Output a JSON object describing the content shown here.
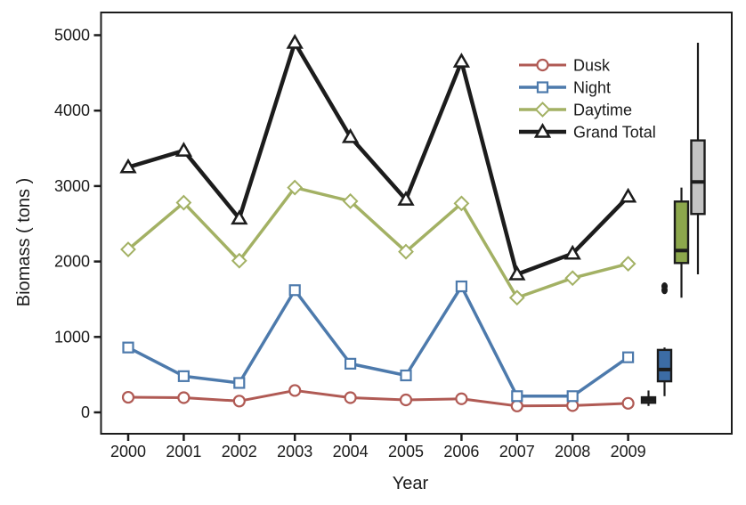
{
  "chart_data": {
    "type": "line",
    "title": "",
    "xlabel": "Year",
    "ylabel": "Biomass ( tons )",
    "x": [
      2000,
      2001,
      2002,
      2003,
      2004,
      2005,
      2006,
      2007,
      2008,
      2009
    ],
    "yticks": [
      0,
      1000,
      2000,
      3000,
      4000,
      5000
    ],
    "ylim": [
      0,
      5000
    ],
    "grid": false,
    "legend_position": "inside-top-right",
    "axis_color": "#1c1c1c",
    "series": [
      {
        "name": "Dusk",
        "color": "#B05A54",
        "marker": "circle",
        "values": [
          200,
          195,
          150,
          290,
          195,
          165,
          180,
          85,
          90,
          120
        ]
      },
      {
        "name": "Night",
        "color": "#4D7AAC",
        "marker": "square",
        "values": [
          860,
          480,
          390,
          1620,
          645,
          490,
          1670,
          215,
          215,
          730
        ]
      },
      {
        "name": "Daytime",
        "color": "#A3B164",
        "marker": "diamond",
        "values": [
          2160,
          2780,
          2010,
          2980,
          2800,
          2130,
          2770,
          1520,
          1780,
          1970
        ]
      },
      {
        "name": "Grand Total",
        "color": "#1C1C1C",
        "marker": "triangle",
        "values": [
          3250,
          3470,
          2570,
          4900,
          3650,
          2820,
          4650,
          1830,
          2105,
          2860
        ]
      }
    ],
    "boxplots": [
      {
        "name": "Dusk",
        "fill": "#2B2B2B",
        "min": 85,
        "q1": 127,
        "median": 172,
        "q3": 200,
        "max": 290,
        "outliers": []
      },
      {
        "name": "Night",
        "fill": "#3C6CA5",
        "min": 215,
        "q1": 412,
        "median": 568,
        "q3": 828,
        "max": 860,
        "outliers": [
          1620,
          1670
        ]
      },
      {
        "name": "Daytime",
        "fill": "#8CA74C",
        "min": 1520,
        "q1": 1980,
        "median": 2145,
        "q3": 2795,
        "max": 2980,
        "outliers": []
      },
      {
        "name": "Grand Total",
        "fill": "#C3C3C3",
        "min": 1830,
        "q1": 2630,
        "median": 3055,
        "q3": 3605,
        "max": 4900,
        "outliers": []
      }
    ]
  }
}
